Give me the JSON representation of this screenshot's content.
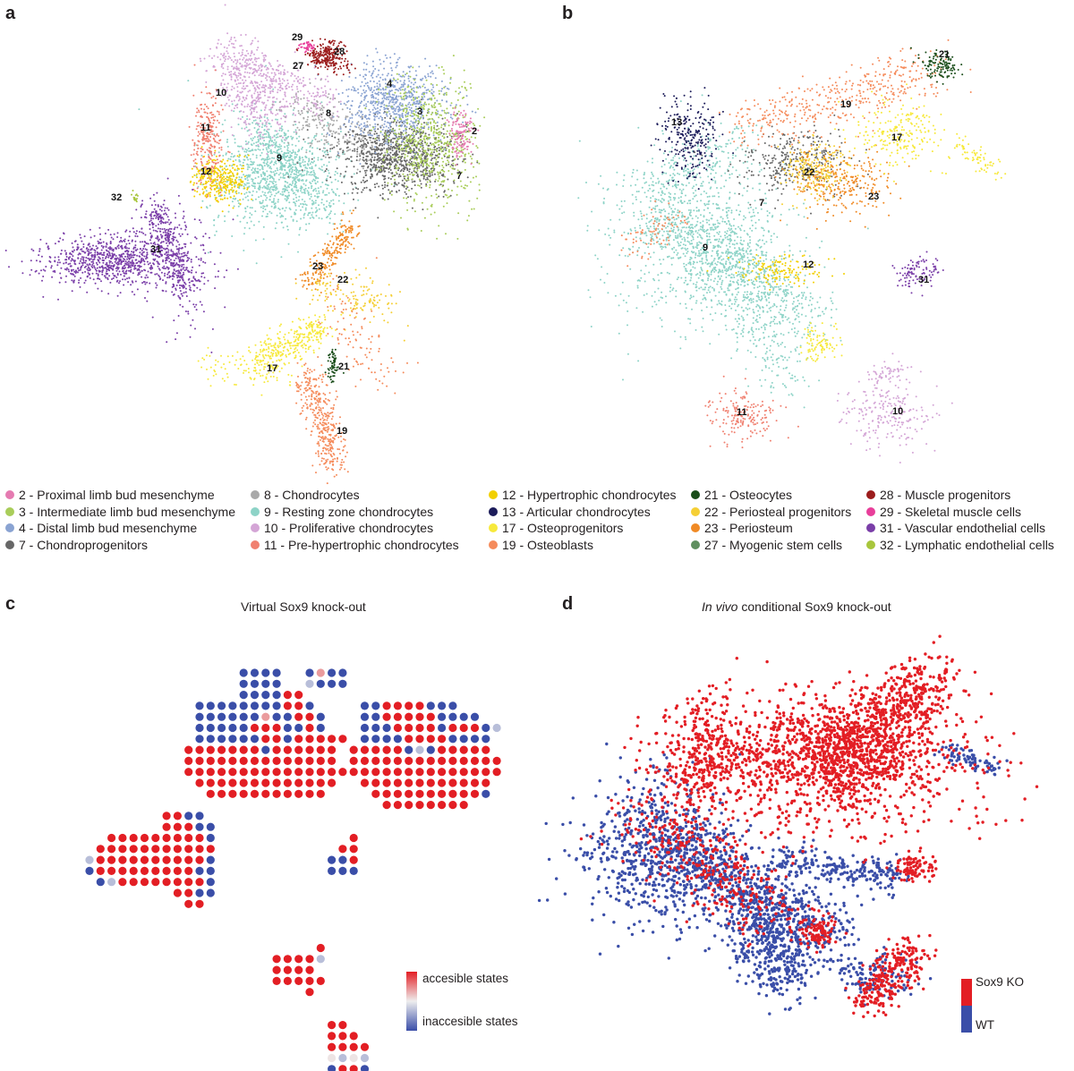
{
  "panels": {
    "a": {
      "letter": "a"
    },
    "b": {
      "letter": "b"
    },
    "c": {
      "letter": "c",
      "title": "Virtual Sox9 knock-out"
    },
    "d": {
      "letter": "d",
      "title_italic": "In vivo",
      "title_rest": " conditional Sox9 knock-out"
    }
  },
  "clusters": [
    {
      "id": "2",
      "label": "2 - Proximal limb bud mesenchyme",
      "color": "#e57bb1"
    },
    {
      "id": "3",
      "label": "3 - Intermediate limb bud mesenchyme",
      "color": "#a9cd5a"
    },
    {
      "id": "4",
      "label": "4 - Distal limb bud mesenchyme",
      "color": "#8aa3d2"
    },
    {
      "id": "7",
      "label": "7 - Chondroprogenitors",
      "color": "#676767"
    },
    {
      "id": "8",
      "label": "8 - Chondrocytes",
      "color": "#a9a9a9"
    },
    {
      "id": "9",
      "label": "9 - Resting zone chondrocytes",
      "color": "#8dd3c7"
    },
    {
      "id": "10",
      "label": "10 - Proliferative chondrocytes",
      "color": "#d4a5d6"
    },
    {
      "id": "11",
      "label": "11 - Pre-hypertrophic chondrocytes",
      "color": "#f08070"
    },
    {
      "id": "12",
      "label": "12 - Hypertrophic chondrocytes",
      "color": "#f2d000"
    },
    {
      "id": "13",
      "label": "13 - Articular chondrocytes",
      "color": "#1c1c5a"
    },
    {
      "id": "17",
      "label": "17 - Osteoprogenitors",
      "color": "#f7e93c"
    },
    {
      "id": "19",
      "label": "19 - Osteoblasts",
      "color": "#f58b5b"
    },
    {
      "id": "21",
      "label": "21 - Osteocytes",
      "color": "#1a4d1a"
    },
    {
      "id": "22",
      "label": "22 - Periosteal progenitors",
      "color": "#f5cf35"
    },
    {
      "id": "23",
      "label": "23 - Periosteum",
      "color": "#f08a25"
    },
    {
      "id": "27",
      "label": "27 - Myogenic stem cells",
      "color": "#5f8f5f"
    },
    {
      "id": "28",
      "label": "28 - Muscle progenitors",
      "color": "#9b1c1c"
    },
    {
      "id": "29",
      "label": "29 - Skeletal muscle cells",
      "color": "#e83e9a"
    },
    {
      "id": "31",
      "label": "31 - Vascular endothelial cells",
      "color": "#7a3ea8"
    },
    {
      "id": "32",
      "label": "32 - Lymphatic endothelial cells",
      "color": "#a8c63c"
    }
  ],
  "panel_c_legend": {
    "high": "accesible states",
    "low": "inaccesible states",
    "high_color": "#e31e24",
    "mid_color": "#eeeeee",
    "low_color": "#3a4ea8"
  },
  "panel_d_legend": {
    "ko": "Sox9 KO",
    "wt": "WT",
    "ko_color": "#e31e24",
    "wt_color": "#3a4ea8"
  }
}
